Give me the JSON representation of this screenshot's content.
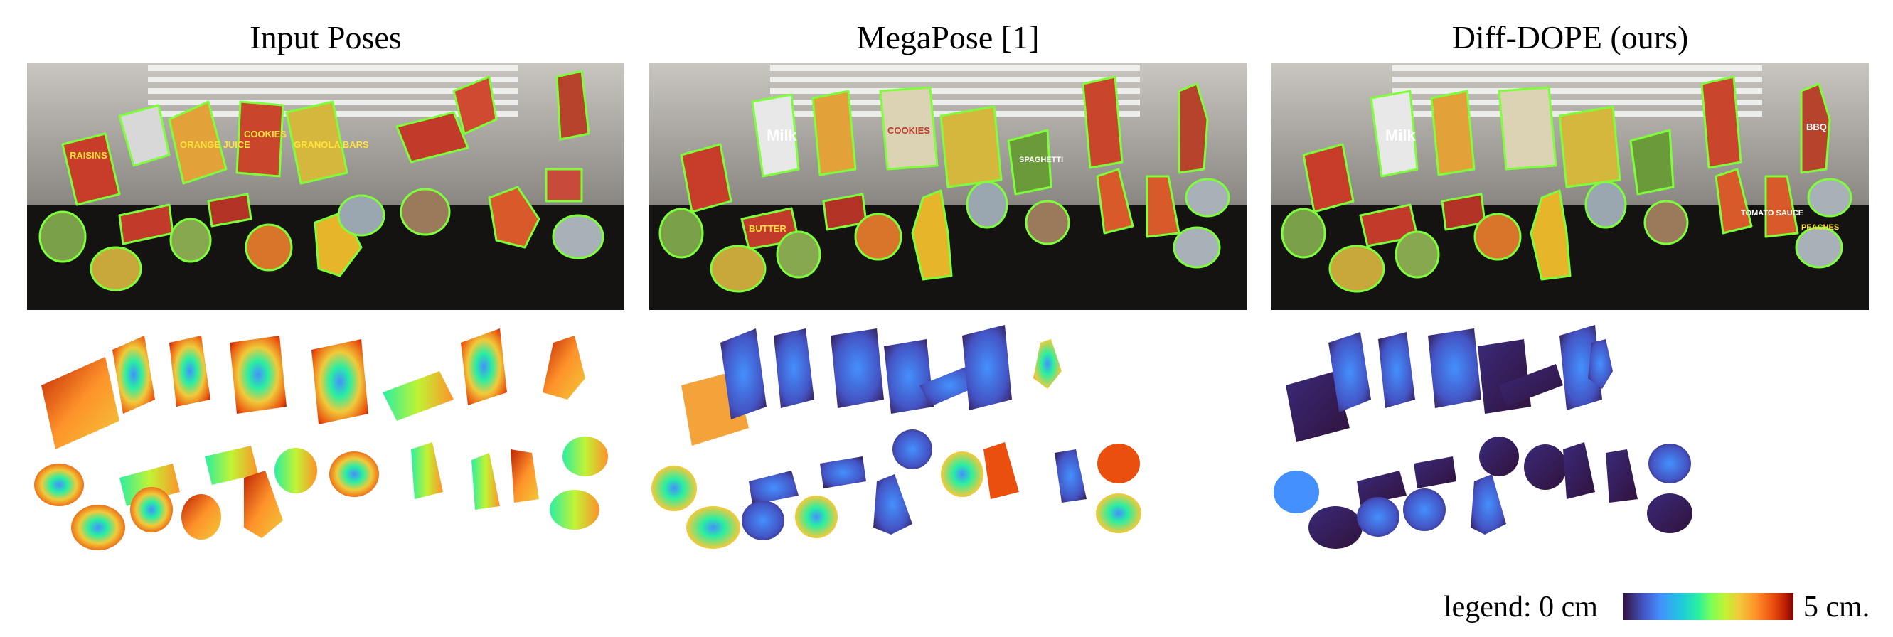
{
  "titles": {
    "input": "Input Poses",
    "megapose": "MegaPose [1]",
    "diffdope": "Diff-DOPE (ours)"
  },
  "photo_labels": {
    "raisins": "RAISINS",
    "milk": "Milk",
    "juice": "ORANGE JUICE",
    "cookies": "COOKIES",
    "granola": "GRANOLA BARS",
    "butter": "BUTTER",
    "peaches": "PEACHES",
    "spaghetti": "SPAGHETTI",
    "tomato": "TOMATO SAUCE",
    "bbq": "BBQ"
  },
  "legend": {
    "prefix": "legend: 0 cm",
    "suffix": "5 cm."
  },
  "colors": {
    "outline": "#7dff3a",
    "scale": [
      "#30123b",
      "#4454c4",
      "#4490fe",
      "#1fc8de",
      "#29efa2",
      "#7dff56",
      "#c1f334",
      "#f1ca3a",
      "#fe922a",
      "#ea4f0d",
      "#be2102",
      "#7a0403"
    ]
  }
}
